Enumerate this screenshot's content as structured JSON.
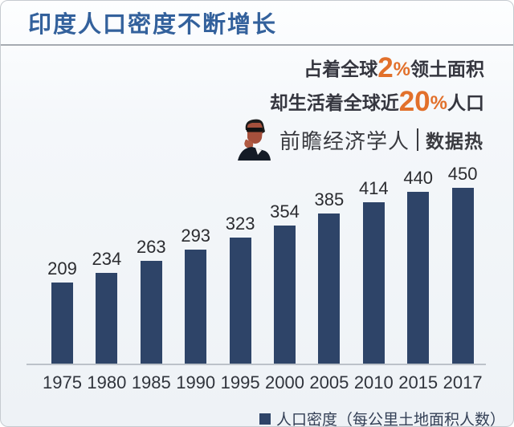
{
  "header": {
    "title": "印度人口密度不断增长",
    "title_color": "#33619c"
  },
  "stats": {
    "accent_color": "#e2702b",
    "text_color": "#35363f",
    "line1": {
      "prefix": "占着全球",
      "number": "2",
      "percent": "%",
      "suffix": "领土面积"
    },
    "line2": {
      "prefix": "却生活着全球近",
      "number": "20",
      "percent": "%",
      "suffix": "人口"
    }
  },
  "logo": {
    "icon": "thinker-man-icon",
    "brand": "前瞻经济学人",
    "sub": "数据热"
  },
  "chart_data": {
    "type": "bar",
    "categories": [
      "1975",
      "1980",
      "1985",
      "1990",
      "1995",
      "2000",
      "2005",
      "2010",
      "2015",
      "2017"
    ],
    "values": [
      209,
      234,
      263,
      293,
      323,
      354,
      385,
      414,
      440,
      450
    ],
    "series_name": "人口密度",
    "title": "印度人口密度不断增长",
    "xlabel": "",
    "ylabel": "",
    "ylim": [
      0,
      450
    ],
    "grid": false,
    "legend_position": "bottom-right",
    "bar_color": "#2e4468",
    "label_color": "#2b2c30"
  },
  "legend": {
    "label": "人口密度（每公里土地面积人数）",
    "swatch_color": "#2e4468"
  }
}
